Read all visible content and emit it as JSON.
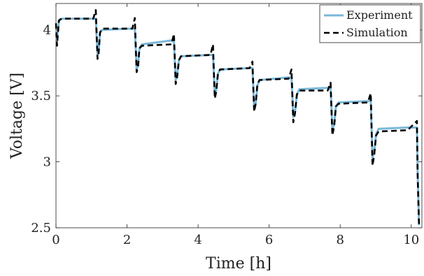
{
  "chart_data": {
    "type": "line",
    "title": "",
    "xlabel": "Time [h]",
    "ylabel": "Voltage [V]",
    "xlim": [
      0,
      10.3
    ],
    "ylim": [
      2.5,
      4.2
    ],
    "xticks": [
      0,
      2,
      4,
      6,
      8,
      10
    ],
    "yticks": [
      2.5,
      3,
      3.5,
      4
    ],
    "xtick_labels": [
      "0",
      "2",
      "4",
      "6",
      "8",
      "10"
    ],
    "ytick_labels": [
      "2.5",
      "3",
      "3.5",
      "4"
    ],
    "grid": false,
    "legend_position": "top-right",
    "series": [
      {
        "name": "Experiment",
        "color": "#7ab8d9",
        "style": "solid",
        "x": [
          0.0,
          0.03,
          0.08,
          0.12,
          0.18,
          1.05,
          1.12,
          1.17,
          1.2,
          1.24,
          1.3,
          2.15,
          2.22,
          2.27,
          2.31,
          2.35,
          2.42,
          3.25,
          3.32,
          3.37,
          3.41,
          3.46,
          3.52,
          4.35,
          4.42,
          4.47,
          4.51,
          4.56,
          4.62,
          5.45,
          5.53,
          5.58,
          5.62,
          5.67,
          5.73,
          6.55,
          6.63,
          6.68,
          6.73,
          6.78,
          6.85,
          7.65,
          7.73,
          7.78,
          7.83,
          7.88,
          7.95,
          8.78,
          8.86,
          8.91,
          8.96,
          9.01,
          9.08,
          9.9,
          10.16,
          10.18,
          10.22
        ],
        "y": [
          3.97,
          3.93,
          4.06,
          4.08,
          4.085,
          4.085,
          4.085,
          3.81,
          3.83,
          3.98,
          4.0,
          4.01,
          4.01,
          3.7,
          3.73,
          3.86,
          3.89,
          3.92,
          3.91,
          3.62,
          3.65,
          3.77,
          3.8,
          3.81,
          3.81,
          3.51,
          3.54,
          3.67,
          3.7,
          3.71,
          3.71,
          3.4,
          3.44,
          3.58,
          3.62,
          3.64,
          3.64,
          3.34,
          3.38,
          3.51,
          3.55,
          3.56,
          3.56,
          3.25,
          3.28,
          3.42,
          3.45,
          3.46,
          3.46,
          3.03,
          3.08,
          3.21,
          3.25,
          3.26,
          3.26,
          2.93,
          2.52
        ]
      },
      {
        "name": "Simulation",
        "color": "#000000",
        "style": "dashed",
        "x": [
          0.0,
          0.03,
          0.08,
          0.12,
          0.18,
          1.05,
          1.12,
          1.17,
          1.2,
          1.24,
          1.3,
          2.15,
          2.22,
          2.27,
          2.31,
          2.35,
          2.42,
          3.25,
          3.32,
          3.37,
          3.41,
          3.46,
          3.52,
          4.35,
          4.42,
          4.47,
          4.51,
          4.56,
          4.62,
          5.45,
          5.53,
          5.58,
          5.62,
          5.67,
          5.73,
          6.55,
          6.63,
          6.68,
          6.73,
          6.78,
          6.85,
          7.65,
          7.73,
          7.78,
          7.83,
          7.88,
          7.95,
          8.78,
          8.86,
          8.91,
          8.96,
          9.01,
          9.08,
          9.9,
          10.16,
          10.18,
          10.22
        ],
        "y": [
          4.05,
          3.88,
          4.07,
          4.08,
          4.085,
          4.085,
          4.15,
          3.78,
          3.82,
          3.98,
          4.01,
          4.01,
          4.09,
          3.68,
          3.72,
          3.86,
          3.88,
          3.89,
          3.97,
          3.59,
          3.64,
          3.77,
          3.8,
          3.81,
          3.89,
          3.48,
          3.53,
          3.67,
          3.7,
          3.71,
          3.76,
          3.38,
          3.44,
          3.59,
          3.62,
          3.63,
          3.7,
          3.3,
          3.37,
          3.51,
          3.54,
          3.54,
          3.6,
          3.2,
          3.27,
          3.42,
          3.44,
          3.45,
          3.52,
          2.97,
          3.06,
          3.2,
          3.23,
          3.24,
          3.31,
          2.9,
          2.52
        ]
      }
    ]
  }
}
